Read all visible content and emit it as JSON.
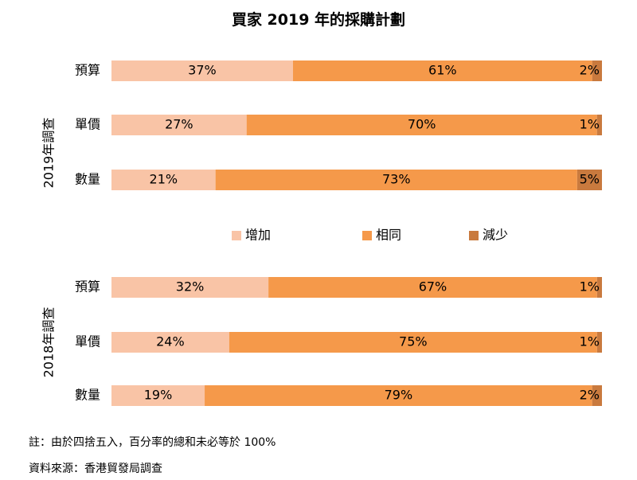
{
  "title": "買家 2019 年的採購計劃",
  "chart_data": [
    {
      "type": "bar",
      "orientation": "horizontal",
      "stacked": true,
      "group_label": "2019年調查",
      "categories": [
        "預算",
        "單價",
        "數量"
      ],
      "series": [
        {
          "name": "增加",
          "values": [
            37,
            27,
            21
          ]
        },
        {
          "name": "相同",
          "values": [
            61,
            70,
            73
          ]
        },
        {
          "name": "減少",
          "values": [
            2,
            1,
            5
          ]
        }
      ],
      "unit": "%"
    },
    {
      "type": "bar",
      "orientation": "horizontal",
      "stacked": true,
      "group_label": "2018年調查",
      "categories": [
        "預算",
        "單價",
        "數量"
      ],
      "series": [
        {
          "name": "增加",
          "values": [
            32,
            24,
            19
          ]
        },
        {
          "name": "相同",
          "values": [
            67,
            75,
            79
          ]
        },
        {
          "name": "減少",
          "values": [
            1,
            1,
            2
          ]
        }
      ],
      "unit": "%"
    }
  ],
  "legend": {
    "placement": "center",
    "items": [
      {
        "name": "增加",
        "color": "#f9c4a6"
      },
      {
        "name": "相同",
        "color": "#f5994a"
      },
      {
        "name": "減少",
        "color": "#c97a3e"
      }
    ]
  },
  "notes": {
    "note": "註：由於四捨五入，百分率的總和未必等於 100%",
    "source": "資料來源：香港貿發局調查"
  }
}
